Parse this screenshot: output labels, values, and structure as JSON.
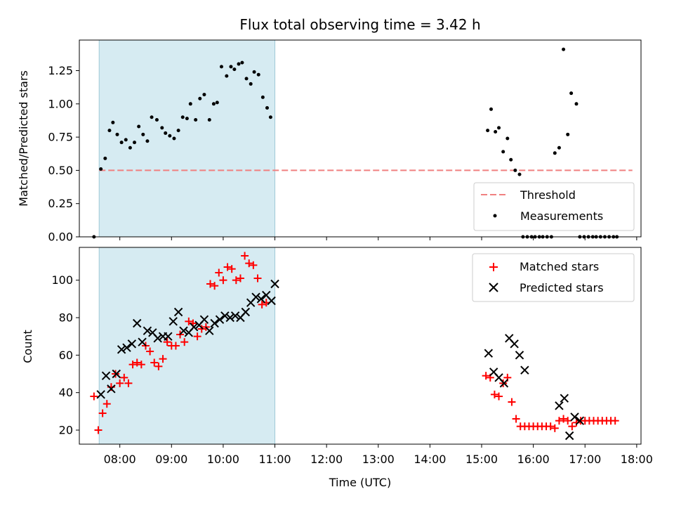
{
  "chart_data": [
    {
      "type": "scatter",
      "title": "Flux total observing time = 3.42 h",
      "xlabel": "",
      "ylabel": "Matched/Predicted stars",
      "xlim": [
        "07:13",
        "18:05"
      ],
      "ylim": [
        0,
        1.48
      ],
      "yticks": [
        "0.00",
        "0.25",
        "0.50",
        "0.75",
        "1.00",
        "1.25"
      ],
      "shaded_region": {
        "start": "07:36",
        "end": "11:00",
        "color": "#add8e6"
      },
      "legend": {
        "position": "lower-right",
        "entries": [
          "Threshold",
          "Measurements"
        ]
      },
      "threshold": {
        "name": "Threshold",
        "y": 0.5,
        "x_start": "07:36",
        "x_end": "17:55",
        "style": "dashed",
        "color": "#f08080"
      },
      "series": [
        {
          "name": "Measurements",
          "style": "dot",
          "color": "#000000",
          "x": [
            "07:30",
            "07:38",
            "07:43",
            "07:48",
            "07:52",
            "07:57",
            "08:02",
            "08:07",
            "08:12",
            "08:17",
            "08:22",
            "08:27",
            "08:32",
            "08:37",
            "08:43",
            "08:49",
            "08:53",
            "08:58",
            "09:03",
            "09:08",
            "09:13",
            "09:18",
            "09:22",
            "09:28",
            "09:33",
            "09:38",
            "09:44",
            "09:49",
            "09:53",
            "09:58",
            "10:04",
            "10:09",
            "10:13",
            "10:18",
            "10:22",
            "10:27",
            "10:32",
            "10:36",
            "10:41",
            "10:46",
            "10:51",
            "10:55",
            "11:00",
            "15:07",
            "15:11",
            "15:16",
            "15:20",
            "15:25",
            "15:30",
            "15:34",
            "15:39",
            "15:44",
            "15:48",
            "15:53",
            "15:58",
            "16:02",
            "16:07",
            "16:11",
            "16:16",
            "16:21",
            "16:25",
            "16:30",
            "16:35",
            "16:40",
            "16:44",
            "16:50",
            "16:54",
            "16:59",
            "17:04",
            "17:09",
            "17:13",
            "17:18",
            "17:23",
            "17:28",
            "17:33",
            "17:37"
          ],
          "y": [
            0.0,
            0.51,
            0.59,
            0.8,
            0.86,
            0.77,
            0.71,
            0.73,
            0.67,
            0.71,
            0.83,
            0.77,
            0.72,
            0.9,
            0.88,
            0.82,
            0.78,
            0.76,
            0.74,
            0.8,
            0.9,
            0.89,
            1.0,
            0.88,
            1.04,
            1.07,
            0.88,
            1.0,
            1.01,
            1.28,
            1.21,
            1.28,
            1.26,
            1.3,
            1.31,
            1.19,
            1.15,
            1.24,
            1.22,
            1.05,
            0.97,
            0.9,
            null,
            0.8,
            0.96,
            0.79,
            0.82,
            0.64,
            0.74,
            0.58,
            0.5,
            0.47,
            0.0,
            0.0,
            0.0,
            0.0,
            0.0,
            0.0,
            0.0,
            0.0,
            0.63,
            0.67,
            1.41,
            0.77,
            1.08,
            1.0,
            0.0,
            0.0,
            0.0,
            0.0,
            0.0,
            0.0,
            0.0,
            0.0,
            0.0,
            0.0
          ]
        }
      ]
    },
    {
      "type": "scatter",
      "title": "",
      "xlabel": "Time (UTC)",
      "ylabel": "Count",
      "xlim": [
        "07:13",
        "18:05"
      ],
      "ylim": [
        12.5,
        117.5
      ],
      "yticks": [
        "20",
        "40",
        "60",
        "80",
        "100"
      ],
      "xticks": [
        "08:00",
        "09:00",
        "10:00",
        "11:00",
        "12:00",
        "13:00",
        "14:00",
        "15:00",
        "16:00",
        "17:00",
        "18:00"
      ],
      "shaded_region": {
        "start": "07:36",
        "end": "11:00",
        "color": "#add8e6"
      },
      "legend": {
        "position": "top-right",
        "entries": [
          "Matched stars",
          "Predicted stars"
        ]
      },
      "series": [
        {
          "name": "Matched stars",
          "style": "plus",
          "color": "#ff0000",
          "x": [
            "07:30",
            "07:35",
            "07:40",
            "07:45",
            "07:50",
            "07:55",
            "08:00",
            "08:05",
            "08:10",
            "08:15",
            "08:20",
            "08:25",
            "08:30",
            "08:35",
            "08:40",
            "08:45",
            "08:50",
            "08:55",
            "09:00",
            "09:05",
            "09:10",
            "09:15",
            "09:20",
            "09:25",
            "09:30",
            "09:35",
            "09:40",
            "09:45",
            "09:50",
            "09:55",
            "10:00",
            "10:05",
            "10:10",
            "10:15",
            "10:20",
            "10:25",
            "10:30",
            "10:35",
            "10:40",
            "10:45",
            "10:50",
            "10:55",
            "11:00",
            "15:05",
            "15:10",
            "15:15",
            "15:20",
            "15:25",
            "15:30",
            "15:35",
            "15:40",
            "15:45",
            "15:50",
            "15:55",
            "16:00",
            "16:05",
            "16:10",
            "16:15",
            "16:20",
            "16:25",
            "16:30",
            "16:35",
            "16:40",
            "16:45",
            "16:50",
            "16:55",
            "17:00",
            "17:05",
            "17:10",
            "17:15",
            "17:20",
            "17:25",
            "17:30",
            "17:35"
          ],
          "y": [
            38,
            20,
            29,
            34,
            43,
            50,
            45,
            48,
            45,
            55,
            56,
            55,
            65,
            62,
            56,
            54,
            58,
            67,
            65,
            65,
            71,
            67,
            78,
            77,
            70,
            74,
            75,
            98,
            97,
            104,
            100,
            107,
            106,
            100,
            101,
            113,
            109,
            108,
            101,
            87,
            88,
            null,
            null,
            49,
            48,
            39,
            38,
            45,
            48,
            35,
            26,
            22,
            22,
            22,
            22,
            22,
            22,
            22,
            22,
            21,
            25,
            26,
            25,
            22,
            24,
            25,
            25,
            25,
            25,
            25,
            25,
            25,
            25,
            25
          ],
          "count": 74
        },
        {
          "name": "Predicted stars",
          "style": "x",
          "color": "#000000",
          "x": [
            "07:38",
            "07:44",
            "07:50",
            "07:56",
            "08:02",
            "08:08",
            "08:14",
            "08:20",
            "08:26",
            "08:32",
            "08:38",
            "08:44",
            "08:50",
            "08:56",
            "09:02",
            "09:08",
            "09:14",
            "09:20",
            "09:26",
            "09:32",
            "09:38",
            "09:44",
            "09:50",
            "09:56",
            "10:02",
            "10:08",
            "10:14",
            "10:20",
            "10:26",
            "10:32",
            "10:38",
            "10:44",
            "10:50",
            "10:56",
            "11:00",
            "15:08",
            "15:14",
            "15:20",
            "15:26",
            "15:32",
            "15:38",
            "15:44",
            "15:50",
            "16:30",
            "16:36",
            "16:42",
            "16:48",
            "16:54"
          ],
          "y": [
            39,
            49,
            42,
            50,
            63,
            64,
            66,
            77,
            67,
            73,
            72,
            69,
            70,
            70,
            78,
            83,
            73,
            72,
            75,
            76,
            79,
            73,
            77,
            79,
            81,
            80,
            81,
            80,
            83,
            88,
            91,
            90,
            92,
            89,
            98,
            61,
            51,
            48,
            45,
            69,
            66,
            60,
            52,
            33,
            37,
            17,
            27,
            25
          ]
        }
      ]
    }
  ]
}
